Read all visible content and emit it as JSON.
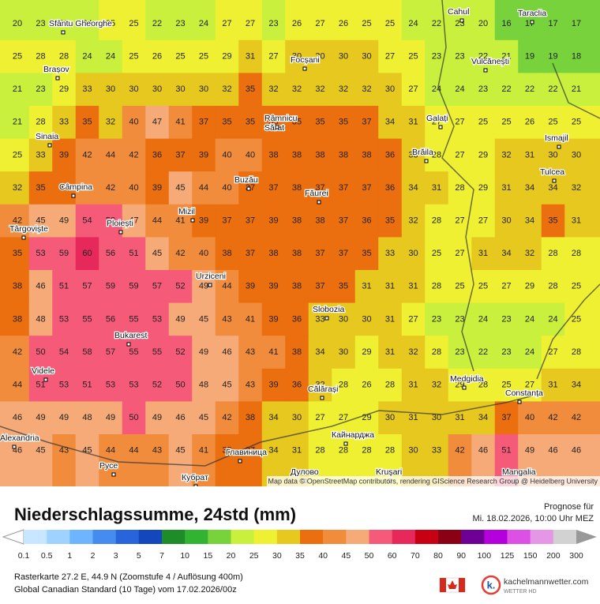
{
  "map": {
    "grid_values": [
      [
        20,
        23,
        23,
        24,
        25,
        25,
        22,
        23,
        24,
        27,
        27,
        23,
        26,
        27,
        26,
        25,
        25,
        24,
        22,
        23,
        20,
        16,
        17,
        17,
        17
      ],
      [
        25,
        28,
        28,
        24,
        24,
        25,
        26,
        25,
        25,
        29,
        31,
        27,
        30,
        30,
        30,
        30,
        27,
        25,
        23,
        23,
        22,
        21,
        19,
        19,
        18
      ],
      [
        21,
        23,
        29,
        33,
        30,
        30,
        30,
        30,
        30,
        32,
        35,
        32,
        32,
        32,
        32,
        32,
        30,
        27,
        24,
        24,
        23,
        22,
        22,
        22,
        21
      ],
      [
        21,
        28,
        33,
        35,
        32,
        40,
        47,
        41,
        37,
        35,
        35,
        35,
        35,
        35,
        35,
        37,
        34,
        31,
        27,
        27,
        25,
        25,
        26,
        25,
        25
      ],
      [
        25,
        33,
        39,
        42,
        44,
        42,
        36,
        37,
        39,
        40,
        40,
        38,
        38,
        38,
        38,
        38,
        36,
        33,
        28,
        27,
        29,
        32,
        31,
        30,
        30
      ],
      [
        32,
        35,
        39,
        43,
        42,
        40,
        39,
        45,
        44,
        40,
        37,
        37,
        38,
        37,
        37,
        37,
        36,
        34,
        31,
        28,
        29,
        31,
        34,
        34,
        32
      ],
      [
        42,
        45,
        49,
        54,
        52,
        47,
        44,
        41,
        39,
        37,
        37,
        39,
        38,
        38,
        37,
        36,
        35,
        32,
        28,
        27,
        27,
        30,
        34,
        35,
        31
      ],
      [
        35,
        53,
        59,
        60,
        56,
        51,
        45,
        42,
        40,
        38,
        37,
        38,
        38,
        37,
        37,
        35,
        33,
        30,
        25,
        27,
        31,
        34,
        32,
        28,
        28
      ],
      [
        38,
        46,
        51,
        57,
        59,
        59,
        57,
        52,
        49,
        44,
        39,
        39,
        38,
        37,
        35,
        31,
        31,
        31,
        28,
        25,
        25,
        27,
        29,
        28,
        25
      ],
      [
        38,
        48,
        53,
        55,
        56,
        55,
        53,
        49,
        45,
        43,
        41,
        39,
        36,
        33,
        30,
        30,
        31,
        27,
        23,
        23,
        24,
        23,
        24,
        24,
        25
      ],
      [
        42,
        50,
        54,
        58,
        57,
        55,
        55,
        52,
        49,
        46,
        43,
        41,
        38,
        34,
        30,
        29,
        31,
        32,
        28,
        23,
        22,
        23,
        24,
        27,
        28
      ],
      [
        44,
        51,
        53,
        51,
        53,
        53,
        52,
        50,
        48,
        45,
        43,
        39,
        36,
        32,
        28,
        26,
        28,
        31,
        32,
        29,
        28,
        25,
        27,
        31,
        34
      ],
      [
        46,
        49,
        49,
        48,
        49,
        50,
        49,
        46,
        45,
        42,
        38,
        34,
        30,
        27,
        27,
        29,
        30,
        31,
        30,
        31,
        34,
        37,
        40,
        42,
        42
      ],
      [
        46,
        45,
        43,
        45,
        44,
        44,
        43,
        45,
        41,
        38,
        37,
        34,
        31,
        28,
        28,
        28,
        28,
        30,
        33,
        42,
        46,
        51,
        49,
        46,
        46
      ]
    ],
    "places": [
      "Sfântu Gheorghe",
      "Brașov",
      "Sinaia",
      "Câmpina",
      "Târgoviște",
      "Ploiești",
      "Mizil",
      "Buzău",
      "Râmnicu Sărat",
      "Focșani",
      "Făurei",
      "Urziceni",
      "Slobozia",
      "Bukarest",
      "Videle",
      "Călărași",
      "Кайнарджа",
      "Alexandria",
      "Русе",
      "Кубрат",
      "Главиница",
      "Дулово",
      "Kruşari",
      "Mangalia",
      "Constanța",
      "Medgidia",
      "Tulcea",
      "Ismajil",
      "Brăila",
      "Galați",
      "Vulcănești",
      "Cahul",
      "Taraclia"
    ],
    "attribution": "Map data © OpenStreetMap contributors, rendering GIScience Research Group @ Heidelberg University"
  },
  "header": {
    "title": "Niederschlagssumme, 24std (mm)",
    "forecast_label": "Prognose für",
    "forecast_time": "Mi. 18.02.2026, 10:00 Uhr MEZ"
  },
  "legend": {
    "labels": [
      0.1,
      0.5,
      1,
      2,
      3,
      5,
      7,
      10,
      15,
      20,
      25,
      30,
      35,
      40,
      45,
      50,
      60,
      70,
      80,
      90,
      100,
      125,
      150,
      200,
      300
    ],
    "colors": [
      "#c8e6ff",
      "#a0d2ff",
      "#6eb4ff",
      "#468cf0",
      "#2864dc",
      "#1446be",
      "#1e8c28",
      "#32b432",
      "#78d23c",
      "#c8f03c",
      "#f0f032",
      "#e6c81e",
      "#eb6e0f",
      "#f08c3c",
      "#f5aa78",
      "#f55a78",
      "#e6285a",
      "#c80014",
      "#8c0014",
      "#6e0096",
      "#b400dc",
      "#dc50e6",
      "#e696e6",
      "#d2d2d2"
    ]
  },
  "footer": {
    "line1": "Rasterkarte 27.2 E, 44.9 N (Zoomstufe 4 / Auflösung 400m)",
    "line2": "Global Canadian Standard (10 Tage) vom 17.02.2026/00z",
    "brand": "kachelmannwetter.com",
    "brand_sub": "WETTER HD"
  }
}
